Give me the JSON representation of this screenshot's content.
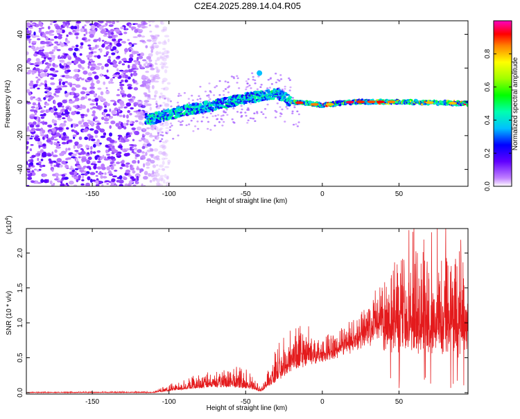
{
  "title": "C2E4.2025.289.14.04.R05",
  "chart_data": [
    {
      "type": "heatmap",
      "name": "spectrogram",
      "xlabel": "Height of straight line (km)",
      "ylabel": "Frequency (Hz)",
      "xlim": [
        -193,
        95
      ],
      "ylim": [
        -50,
        48
      ],
      "xticks": [
        -150,
        -100,
        -50,
        0,
        50
      ],
      "yticks": [
        -40,
        -20,
        0,
        20,
        40
      ],
      "colorbar": {
        "label": "Normalized spectral amplitude",
        "range": [
          0.0,
          1.0
        ],
        "ticks": [
          0.0,
          0.2,
          0.4,
          0.6,
          0.8
        ],
        "tick_labels": [
          "0.0",
          "0.2",
          "0.4",
          "0.6",
          "0.8"
        ]
      },
      "description_series": [
        {
          "name": "broadband noise region",
          "x_range": [
            -193,
            -110
          ],
          "y_range": [
            -50,
            48
          ]
        },
        {
          "name": "signal ridge",
          "points": [
            [
              -110,
              -10
            ],
            [
              -90,
              -5
            ],
            [
              -70,
              -2
            ],
            [
              -50,
              2
            ],
            [
              -30,
              5
            ],
            [
              -20,
              0
            ],
            [
              0,
              -2
            ],
            [
              20,
              0
            ],
            [
              50,
              0
            ],
            [
              95,
              -1
            ]
          ]
        }
      ]
    },
    {
      "type": "line",
      "name": "snr",
      "xlabel": "Height of straight line (km)",
      "ylabel": "SNR (10 * v/v)",
      "yscale_note": "(x10",
      "yscale_exp": "4",
      "xlim": [
        -193,
        95
      ],
      "ylim": [
        -0.02,
        2.35
      ],
      "xticks": [
        -150,
        -100,
        -50,
        0,
        50
      ],
      "yticks": [
        0.0,
        0.5,
        1.0,
        1.5,
        2.0
      ],
      "ytick_labels": [
        "0.0",
        "0.5",
        "1.0",
        "1.5",
        "2.0"
      ],
      "color": "#e41a1c",
      "envelope": [
        {
          "x": -193,
          "base": 0.0,
          "amp": 0.01
        },
        {
          "x": -110,
          "base": 0.0,
          "amp": 0.02
        },
        {
          "x": -100,
          "base": 0.03,
          "amp": 0.1
        },
        {
          "x": -80,
          "base": 0.08,
          "amp": 0.2
        },
        {
          "x": -60,
          "base": 0.1,
          "amp": 0.28
        },
        {
          "x": -50,
          "base": 0.08,
          "amp": 0.3
        },
        {
          "x": -40,
          "base": 0.02,
          "amp": 0.05
        },
        {
          "x": -30,
          "base": 0.2,
          "amp": 0.45
        },
        {
          "x": -20,
          "base": 0.4,
          "amp": 0.7
        },
        {
          "x": -10,
          "base": 0.5,
          "amp": 0.5
        },
        {
          "x": 0,
          "base": 0.55,
          "amp": 0.3
        },
        {
          "x": 20,
          "base": 0.75,
          "amp": 0.35
        },
        {
          "x": 40,
          "base": 1.0,
          "amp": 0.7
        },
        {
          "x": 60,
          "base": 1.0,
          "amp": 1.2
        },
        {
          "x": 80,
          "base": 0.9,
          "amp": 1.3
        },
        {
          "x": 95,
          "base": 0.9,
          "amp": 1.2
        }
      ]
    }
  ]
}
